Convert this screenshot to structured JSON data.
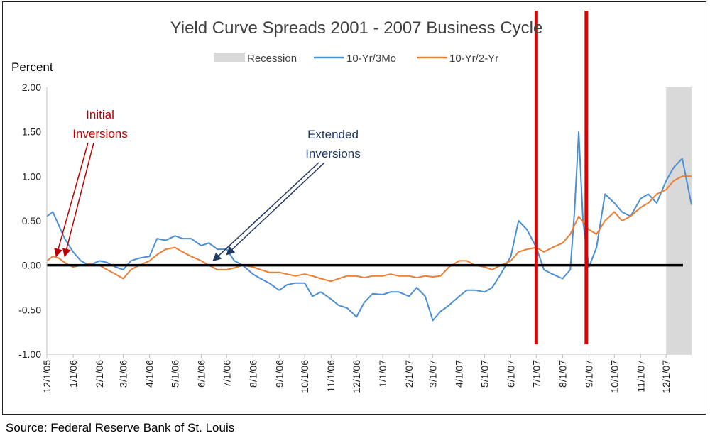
{
  "source_text": "Source: Federal Reserve Bank of St. Louis",
  "colors": {
    "series_3mo": "#4a8fd4",
    "series_2yr": "#ed7d31",
    "recession": "#d9d9d9",
    "zero_line": "#000000",
    "marker_lines": "#e00000",
    "initial_arrows": "#c00000",
    "extended_arrows": "#1f3864"
  },
  "chart_data": {
    "type": "line",
    "title": "Yield Curve Spreads  2001 - 2007 Business Cycle",
    "ylabel": "Percent",
    "xlabel": "",
    "ylim": [
      -1.0,
      2.0
    ],
    "yticks": [
      "2.00",
      "1.50",
      "1.00",
      "0.50",
      "0.00",
      "-0.50",
      "-1.00"
    ],
    "ytick_values": [
      2.0,
      1.5,
      1.0,
      0.5,
      0.0,
      -0.5,
      -1.0
    ],
    "xlim": [
      "12/1/05",
      "12/31/07"
    ],
    "xticks": [
      "12/1/05",
      "1/1/06",
      "2/1/06",
      "3/1/06",
      "4/1/06",
      "5/1/06",
      "6/1/06",
      "7/1/06",
      "8/1/06",
      "9/1/06",
      "10/1/06",
      "11/1/06",
      "12/1/06",
      "1/1/07",
      "2/1/07",
      "3/1/07",
      "4/1/07",
      "5/1/07",
      "6/1/07",
      "7/1/07",
      "8/1/07",
      "9/1/07",
      "10/1/07",
      "11/1/07",
      "12/1/07"
    ],
    "legend": {
      "placement": "top-center",
      "entries": [
        "Recession",
        "10-Yr/3Mo",
        "10-Yr/2-Yr"
      ]
    },
    "recession": {
      "name": "Recession",
      "start": "12/1/07",
      "end": "12/31/07"
    },
    "reference_line": {
      "y": 0.0
    },
    "marker_lines": [
      "7/1/07",
      "8/29/07"
    ],
    "series": [
      {
        "name": "10-Yr/3Mo",
        "x": [
          "12/1/05",
          "12/8/05",
          "12/15/05",
          "12/22/05",
          "1/1/06",
          "1/10/06",
          "1/20/06",
          "2/1/06",
          "2/10/06",
          "2/20/06",
          "3/1/06",
          "3/10/06",
          "3/20/06",
          "4/1/06",
          "4/10/06",
          "4/20/06",
          "5/1/06",
          "5/10/06",
          "5/20/06",
          "6/1/06",
          "6/10/06",
          "6/20/06",
          "7/1/06",
          "7/10/06",
          "7/20/06",
          "8/1/06",
          "8/10/06",
          "8/20/06",
          "9/1/06",
          "9/10/06",
          "9/20/06",
          "10/1/06",
          "10/10/06",
          "10/20/06",
          "11/1/06",
          "11/10/06",
          "11/20/06",
          "12/1/06",
          "12/10/06",
          "12/20/06",
          "1/1/07",
          "1/10/07",
          "1/20/07",
          "2/1/07",
          "2/10/07",
          "2/20/07",
          "3/1/07",
          "3/10/07",
          "3/20/07",
          "4/1/07",
          "4/10/07",
          "4/20/07",
          "5/1/07",
          "5/10/07",
          "5/20/07",
          "6/1/07",
          "6/10/07",
          "6/20/07",
          "7/1/07",
          "7/10/07",
          "7/20/07",
          "8/1/07",
          "8/10/07",
          "8/15/07",
          "8/20/07",
          "8/25/07",
          "9/1/07",
          "9/10/07",
          "9/20/07",
          "10/1/07",
          "10/10/07",
          "10/20/07",
          "11/1/07",
          "11/10/07",
          "11/20/07",
          "12/1/07",
          "12/10/07",
          "12/20/07",
          "12/31/07"
        ],
        "values": [
          0.55,
          0.6,
          0.45,
          0.3,
          0.15,
          0.05,
          0.0,
          0.05,
          0.03,
          -0.02,
          -0.05,
          0.05,
          0.08,
          0.1,
          0.3,
          0.28,
          0.33,
          0.3,
          0.3,
          0.22,
          0.25,
          0.18,
          0.18,
          0.05,
          0.0,
          -0.1,
          -0.15,
          -0.2,
          -0.28,
          -0.22,
          -0.2,
          -0.2,
          -0.35,
          -0.3,
          -0.38,
          -0.45,
          -0.48,
          -0.58,
          -0.42,
          -0.32,
          -0.33,
          -0.3,
          -0.3,
          -0.35,
          -0.25,
          -0.35,
          -0.62,
          -0.52,
          -0.45,
          -0.35,
          -0.28,
          -0.28,
          -0.3,
          -0.25,
          -0.1,
          0.1,
          0.5,
          0.4,
          0.2,
          -0.05,
          -0.1,
          -0.15,
          -0.05,
          0.6,
          1.5,
          0.5,
          -0.02,
          0.2,
          0.8,
          0.7,
          0.6,
          0.55,
          0.75,
          0.8,
          0.7,
          0.95,
          1.1,
          1.2,
          0.68
        ]
      },
      {
        "name": "10-Yr/2-Yr",
        "x": [
          "12/1/05",
          "12/8/05",
          "12/15/05",
          "12/22/05",
          "1/1/06",
          "1/10/06",
          "1/20/06",
          "2/1/06",
          "2/10/06",
          "2/20/06",
          "3/1/06",
          "3/10/06",
          "3/20/06",
          "4/1/06",
          "4/10/06",
          "4/20/06",
          "5/1/06",
          "5/10/06",
          "5/20/06",
          "6/1/06",
          "6/10/06",
          "6/20/06",
          "7/1/06",
          "7/10/06",
          "7/20/06",
          "8/1/06",
          "8/10/06",
          "8/20/06",
          "9/1/06",
          "9/10/06",
          "9/20/06",
          "10/1/06",
          "10/10/06",
          "10/20/06",
          "11/1/06",
          "11/10/06",
          "11/20/06",
          "12/1/06",
          "12/10/06",
          "12/20/06",
          "1/1/07",
          "1/10/07",
          "1/20/07",
          "2/1/07",
          "2/10/07",
          "2/20/07",
          "3/1/07",
          "3/10/07",
          "3/20/07",
          "4/1/07",
          "4/10/07",
          "4/20/07",
          "5/1/07",
          "5/10/07",
          "5/20/07",
          "6/1/07",
          "6/10/07",
          "6/20/07",
          "7/1/07",
          "7/10/07",
          "7/20/07",
          "8/1/07",
          "8/10/07",
          "8/20/07",
          "9/1/07",
          "9/10/07",
          "9/20/07",
          "10/1/07",
          "10/10/07",
          "10/20/07",
          "11/1/07",
          "11/10/07",
          "11/20/07",
          "12/1/07",
          "12/10/07",
          "12/20/07",
          "12/31/07"
        ],
        "values": [
          0.05,
          0.1,
          0.08,
          0.03,
          -0.02,
          0.0,
          0.02,
          0.0,
          -0.05,
          -0.1,
          -0.15,
          -0.05,
          0.0,
          0.05,
          0.12,
          0.18,
          0.2,
          0.15,
          0.1,
          0.05,
          0.0,
          -0.05,
          -0.05,
          -0.03,
          0.0,
          -0.02,
          -0.05,
          -0.08,
          -0.08,
          -0.1,
          -0.12,
          -0.1,
          -0.12,
          -0.15,
          -0.18,
          -0.15,
          -0.12,
          -0.12,
          -0.14,
          -0.12,
          -0.12,
          -0.1,
          -0.12,
          -0.12,
          -0.14,
          -0.12,
          -0.13,
          -0.12,
          -0.02,
          0.05,
          0.05,
          0.0,
          -0.02,
          -0.05,
          0.0,
          0.05,
          0.15,
          0.18,
          0.2,
          0.15,
          0.2,
          0.25,
          0.35,
          0.55,
          0.4,
          0.35,
          0.5,
          0.6,
          0.5,
          0.55,
          0.65,
          0.7,
          0.8,
          0.85,
          0.95,
          1.0,
          1.0
        ]
      }
    ],
    "annotations": [
      {
        "lines": [
          "Initial",
          "Inversions"
        ],
        "color": "#c00000",
        "arrow_targets": [
          [
            "12/12/05",
            0.1
          ],
          [
            "12/22/05",
            0.1
          ]
        ]
      },
      {
        "lines": [
          "Extended",
          "Inversions"
        ],
        "color": "#1f3864",
        "arrow_targets": [
          [
            "6/15/06",
            0.05
          ],
          [
            "7/1/06",
            0.12
          ]
        ]
      }
    ]
  }
}
